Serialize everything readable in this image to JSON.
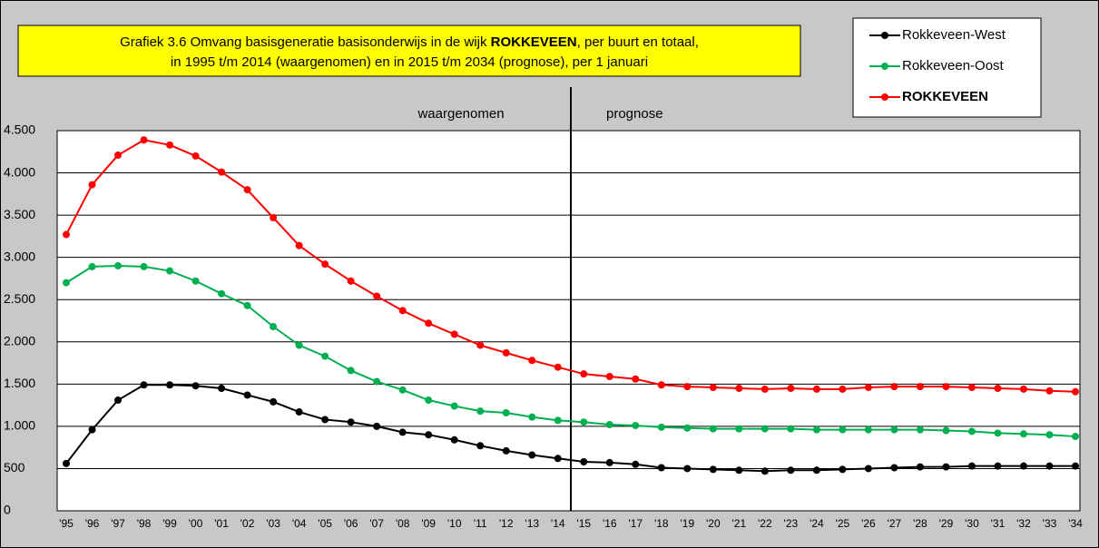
{
  "chart_data": {
    "type": "line",
    "title": [
      "Grafiek 3.6  Omvang basisgeneratie basisonderwijs in de wijk ",
      "ROKKEVEEN",
      ", per buurt en totaal,",
      "in 1995 t/m 2014 (waargenomen) en in 2015 t/m 2034 (prognose), per 1 januari"
    ],
    "annotations": [
      "waargenomen",
      "prognose"
    ],
    "categories": [
      "'95",
      "'96",
      "'97",
      "'98",
      "'99",
      "'00",
      "'01",
      "'02",
      "'03",
      "'04",
      "'05",
      "'06",
      "'07",
      "'08",
      "'09",
      "'10",
      "'11",
      "'12",
      "'13",
      "'14",
      "'15",
      "'16",
      "'17",
      "'18",
      "'19",
      "'20",
      "'21",
      "'22",
      "'23",
      "'24",
      "'25",
      "'26",
      "'27",
      "'28",
      "'29",
      "'30",
      "'31",
      "'32",
      "'33",
      "'34"
    ],
    "series": [
      {
        "name": "Rokkeveen-West",
        "color": "#000000",
        "values": [
          560,
          960,
          1310,
          1490,
          1490,
          1480,
          1450,
          1370,
          1290,
          1170,
          1080,
          1050,
          1000,
          930,
          900,
          840,
          770,
          710,
          660,
          620,
          580,
          570,
          550,
          510,
          500,
          490,
          480,
          470,
          480,
          480,
          490,
          500,
          510,
          520,
          520,
          530,
          530,
          530,
          530,
          530
        ]
      },
      {
        "name": "Rokkeveen-Oost",
        "color": "#00b050",
        "values": [
          2700,
          2890,
          2900,
          2890,
          2840,
          2720,
          2570,
          2430,
          2180,
          1960,
          1830,
          1660,
          1530,
          1430,
          1310,
          1240,
          1180,
          1160,
          1110,
          1070,
          1050,
          1020,
          1010,
          990,
          980,
          970,
          970,
          970,
          970,
          960,
          960,
          960,
          960,
          960,
          950,
          940,
          920,
          910,
          900,
          880
        ]
      },
      {
        "name": "ROKKEVEEN",
        "color": "#ff0000",
        "values": [
          3270,
          3860,
          4210,
          4390,
          4330,
          4200,
          4010,
          3800,
          3470,
          3140,
          2920,
          2720,
          2540,
          2370,
          2220,
          2090,
          1960,
          1870,
          1780,
          1700,
          1620,
          1590,
          1560,
          1490,
          1470,
          1460,
          1450,
          1440,
          1450,
          1440,
          1440,
          1460,
          1470,
          1470,
          1470,
          1460,
          1450,
          1440,
          1420,
          1410
        ]
      }
    ],
    "ylim": [
      0,
      4500
    ],
    "yticks": [
      0,
      500,
      {
        "value": 1000,
        "label": "1.000"
      },
      {
        "value": 1500,
        "label": "1.500"
      },
      {
        "value": 2000,
        "label": "2.000"
      },
      {
        "value": 2500,
        "label": "2.500"
      },
      {
        "value": 3000,
        "label": "3.000"
      },
      {
        "value": 3500,
        "label": "3.500"
      },
      {
        "value": 4000,
        "label": "4.000"
      },
      {
        "value": 4500,
        "label": "4.500"
      }
    ],
    "grid": true
  }
}
